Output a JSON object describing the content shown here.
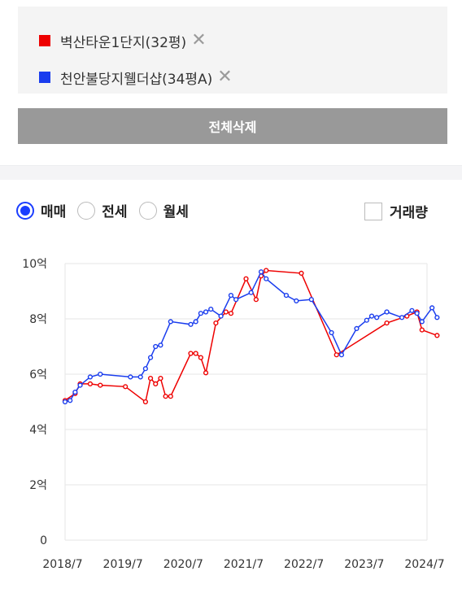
{
  "compare": {
    "items": [
      {
        "name": "벽산타운1단지(32평)",
        "color": "#ee0000"
      },
      {
        "name": "천안불당지웰더샵(34평A)",
        "color": "#1a3dee"
      }
    ],
    "remove_icon": "close-icon",
    "delete_all_label": "전체삭제"
  },
  "filters": {
    "options": [
      "매매",
      "전세",
      "월세"
    ],
    "selected": "매매",
    "volume_label": "거래량",
    "volume_checked": false
  },
  "chart_data": {
    "type": "line",
    "title": "",
    "xlabel": "",
    "ylabel": "",
    "x_ticks": [
      "2018/7",
      "2019/7",
      "2020/7",
      "2021/7",
      "2022/7",
      "2023/7",
      "2024/7"
    ],
    "y_ticks": [
      "0",
      "2억",
      "4억",
      "6억",
      "8억",
      "10억"
    ],
    "ylim": [
      0,
      10
    ],
    "y_unit": "억",
    "xlim": [
      "2018-07",
      "2024-07"
    ],
    "grid": true,
    "legend": "none",
    "series": [
      {
        "color": "#ee0000",
        "points": [
          [
            "2018-07",
            5.05
          ],
          [
            "2018-09",
            5.3
          ],
          [
            "2018-10",
            5.65
          ],
          [
            "2018-12",
            5.65
          ],
          [
            "2019-02",
            5.6
          ],
          [
            "2019-07",
            5.55
          ],
          [
            "2019-11",
            5.0
          ],
          [
            "2019-12",
            5.85
          ],
          [
            "2020-01",
            5.65
          ],
          [
            "2020-02",
            5.85
          ],
          [
            "2020-03",
            5.2
          ],
          [
            "2020-04",
            5.2
          ],
          [
            "2020-08",
            6.75
          ],
          [
            "2020-09",
            6.75
          ],
          [
            "2020-10",
            6.6
          ],
          [
            "2020-11",
            6.05
          ],
          [
            "2021-01",
            7.85
          ],
          [
            "2021-03",
            8.25
          ],
          [
            "2021-04",
            8.2
          ],
          [
            "2021-07",
            9.45
          ],
          [
            "2021-09",
            8.7
          ],
          [
            "2021-10",
            9.55
          ],
          [
            "2021-11",
            9.75
          ],
          [
            "2022-06",
            9.65
          ],
          [
            "2023-01",
            6.7
          ],
          [
            "2023-11",
            7.85
          ],
          [
            "2024-03",
            8.1
          ],
          [
            "2024-05",
            8.25
          ],
          [
            "2024-06",
            7.6
          ],
          [
            "2024-09",
            7.4
          ]
        ]
      },
      {
        "color": "#1a3dee",
        "points": [
          [
            "2018-07",
            5.0
          ],
          [
            "2018-08",
            5.05
          ],
          [
            "2018-09",
            5.35
          ],
          [
            "2018-10",
            5.6
          ],
          [
            "2018-12",
            5.9
          ],
          [
            "2019-02",
            6.0
          ],
          [
            "2019-08",
            5.9
          ],
          [
            "2019-10",
            5.9
          ],
          [
            "2019-11",
            6.2
          ],
          [
            "2019-12",
            6.6
          ],
          [
            "2020-01",
            7.0
          ],
          [
            "2020-02",
            7.05
          ],
          [
            "2020-04",
            7.9
          ],
          [
            "2020-08",
            7.8
          ],
          [
            "2020-09",
            7.9
          ],
          [
            "2020-10",
            8.2
          ],
          [
            "2020-11",
            8.25
          ],
          [
            "2020-12",
            8.35
          ],
          [
            "2021-02",
            8.1
          ],
          [
            "2021-04",
            8.85
          ],
          [
            "2021-05",
            8.7
          ],
          [
            "2021-08",
            8.95
          ],
          [
            "2021-10",
            9.7
          ],
          [
            "2021-11",
            9.45
          ],
          [
            "2022-03",
            8.85
          ],
          [
            "2022-05",
            8.65
          ],
          [
            "2022-08",
            8.7
          ],
          [
            "2022-12",
            7.5
          ],
          [
            "2023-02",
            6.7
          ],
          [
            "2023-05",
            7.65
          ],
          [
            "2023-07",
            7.95
          ],
          [
            "2023-08",
            8.1
          ],
          [
            "2023-09",
            8.05
          ],
          [
            "2023-11",
            8.25
          ],
          [
            "2024-02",
            8.05
          ],
          [
            "2024-04",
            8.3
          ],
          [
            "2024-05",
            8.2
          ],
          [
            "2024-06",
            7.9
          ],
          [
            "2024-08",
            8.4
          ],
          [
            "2024-09",
            8.05
          ]
        ]
      }
    ]
  }
}
